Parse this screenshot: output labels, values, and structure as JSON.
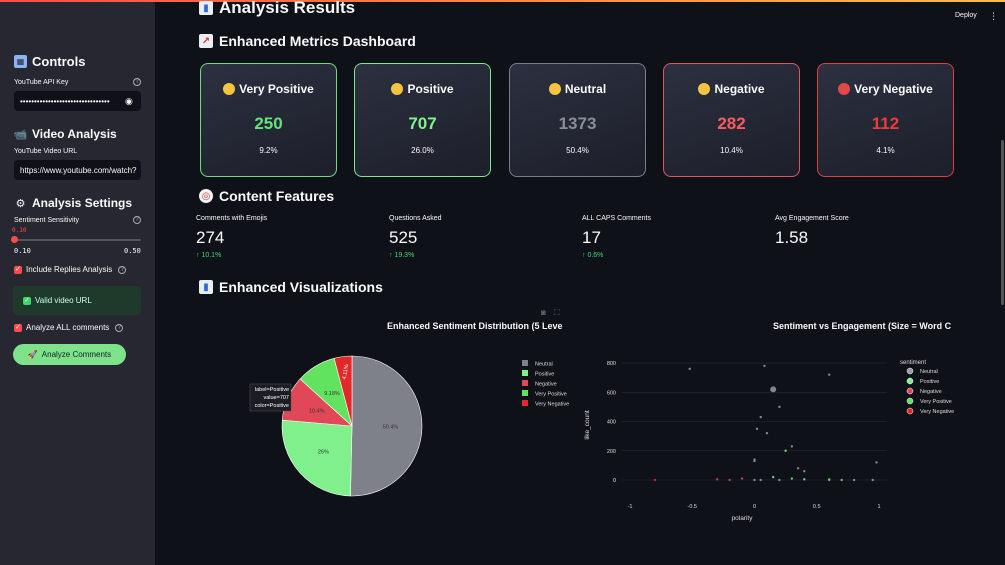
{
  "sidebar": {
    "controls_title": "Controls",
    "api_key_label": "YouTube API Key",
    "api_key_value": "••••••••••••••••••••••••••••••••",
    "video_analysis_title": "Video Analysis",
    "video_url_label": "YouTube Video URL",
    "video_url_value": "https://www.youtube.com/watch?",
    "analysis_settings_title": "Analysis Settings",
    "sensitivity_label": "Sentiment Sensitivity",
    "sensitivity_value": "0.10",
    "sensitivity_min": "0.10",
    "sensitivity_max": "0.50",
    "sensitivity_level": 0,
    "include_replies_label": "Include Replies Analysis",
    "include_replies_checked": true,
    "valid_url_message": "Valid video URL",
    "analyze_all_label": "Analyze ALL comments",
    "analyze_all_checked": true,
    "analyze_button": "Analyze Comments"
  },
  "header": {
    "deploy": "Deploy"
  },
  "main": {
    "analysis_results_title": "Analysis Results",
    "metrics_title": "Enhanced Metrics Dashboard",
    "cards": [
      {
        "label": "Very Positive",
        "value": "250",
        "pct": "9.2%",
        "color": "#64e37a",
        "border": "#6fdc7c"
      },
      {
        "label": "Positive",
        "value": "707",
        "pct": "26.0%",
        "color": "#86f08f",
        "border": "#7fe88a"
      },
      {
        "label": "Neutral",
        "value": "1373",
        "pct": "50.4%",
        "color": "#8b8e96",
        "border": "#7a7e88"
      },
      {
        "label": "Negative",
        "value": "282",
        "pct": "10.4%",
        "color": "#ff5a5f",
        "border": "#e0555a"
      },
      {
        "label": "Very Negative",
        "value": "112",
        "pct": "4.1%",
        "color": "#ee3b3b",
        "border": "#d9403f"
      }
    ],
    "content_features_title": "Content Features",
    "features": [
      {
        "label": "Comments with Emojis",
        "value": "274",
        "delta": "10.1%"
      },
      {
        "label": "Questions Asked",
        "value": "525",
        "delta": "19.3%"
      },
      {
        "label": "ALL CAPS Comments",
        "value": "17",
        "delta": "0.6%"
      },
      {
        "label": "Avg Engagement Score",
        "value": "1.58",
        "delta": ""
      }
    ],
    "visualizations_title": "Enhanced Visualizations"
  },
  "chart_data": [
    {
      "type": "pie",
      "title": "Enhanced Sentiment Distribution (5 Leve",
      "categories": [
        "Neutral",
        "Positive",
        "Negative",
        "Very Positive",
        "Very Negative"
      ],
      "values": [
        50.4,
        26.0,
        10.4,
        9.18,
        4.11
      ],
      "slice_labels": [
        "50.4%",
        "26%",
        "10.4%",
        "9.18%",
        "4.11%"
      ],
      "colors": [
        "#7f8189",
        "#7ff08c",
        "#e04858",
        "#62e35f",
        "#e3282a"
      ],
      "legend": [
        "Neutral",
        "Positive",
        "Negative",
        "Very Positive",
        "Very Negative"
      ],
      "legend_position": "right",
      "tooltip": [
        "label=Positive",
        "value=707",
        "color=Positive"
      ]
    },
    {
      "type": "scatter",
      "title": "Sentiment vs Engagement (Size = Word C",
      "xlabel": "polarity",
      "ylabel": "like_count",
      "xlim": [
        -1,
        1
      ],
      "ylim": [
        0,
        800
      ],
      "xticks": [
        "-1",
        "-0.5",
        "0",
        "0.5",
        "1"
      ],
      "yticks": [
        "0",
        "200",
        "400",
        "600",
        "800"
      ],
      "legend_title": "sentiment",
      "legend_position": "right",
      "series": [
        {
          "name": "Neutral",
          "color": "#9a9ca3",
          "points": [
            [
              0.08,
              780
            ],
            [
              0.05,
              430
            ],
            [
              0.1,
              320
            ],
            [
              -0.52,
              760
            ],
            [
              0.15,
              620
            ],
            [
              0.0,
              140
            ],
            [
              0.6,
              720
            ],
            [
              0.2,
              500
            ],
            [
              0.3,
              230
            ],
            [
              0.35,
              80
            ],
            [
              0.0,
              0
            ],
            [
              0.05,
              0
            ],
            [
              0.2,
              0
            ],
            [
              0.6,
              0
            ],
            [
              0.8,
              0
            ],
            [
              0.95,
              0
            ],
            [
              0.0,
              130
            ],
            [
              0.02,
              350
            ],
            [
              0.4,
              60
            ],
            [
              0.98,
              120
            ]
          ]
        },
        {
          "name": "Positive",
          "color": "#7ff08c",
          "points": [
            [
              0.25,
              200
            ],
            [
              0.3,
              10
            ],
            [
              0.15,
              20
            ],
            [
              0.4,
              5
            ]
          ]
        },
        {
          "name": "Negative",
          "color": "#e04858",
          "points": [
            [
              -0.2,
              0
            ],
            [
              -0.3,
              5
            ],
            [
              -0.1,
              10
            ]
          ]
        },
        {
          "name": "Very Positive",
          "color": "#62e35f",
          "points": [
            [
              0.6,
              5
            ],
            [
              0.7,
              0
            ]
          ]
        },
        {
          "name": "Very Negative",
          "color": "#e3282a",
          "points": [
            [
              -0.8,
              0
            ]
          ]
        }
      ]
    }
  ]
}
